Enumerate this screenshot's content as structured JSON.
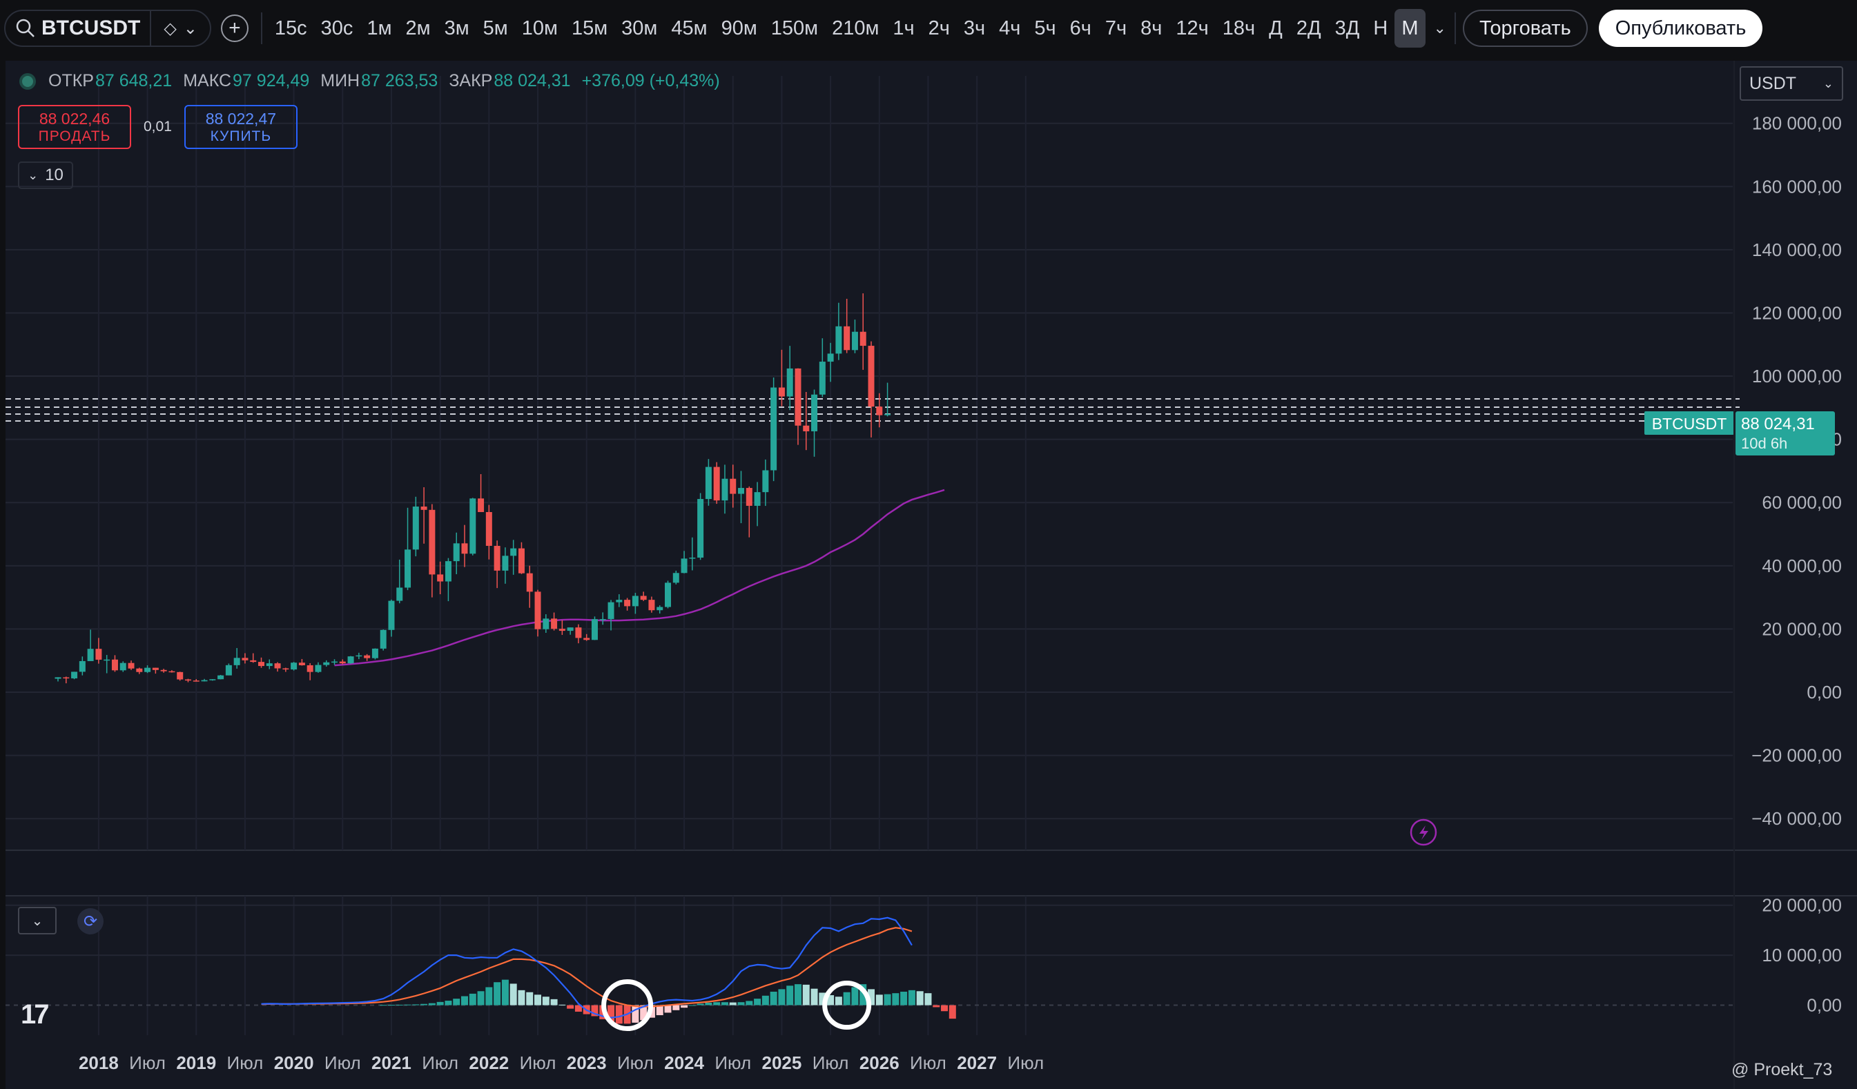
{
  "toolbar": {
    "symbol": "BTCUSDT",
    "timeframes": [
      "15с",
      "30с",
      "1м",
      "2м",
      "3м",
      "5м",
      "10м",
      "15м",
      "30м",
      "45м",
      "90м",
      "150м",
      "210м",
      "1ч",
      "2ч",
      "3ч",
      "4ч",
      "5ч",
      "6ч",
      "7ч",
      "8ч",
      "12ч",
      "18ч",
      "Д",
      "2Д",
      "3Д",
      "Н",
      "М"
    ],
    "active_timeframe": "М",
    "trade_label": "Торговать",
    "publish_label": "Опубликовать"
  },
  "legend": {
    "open_label": "ОТКР",
    "open": "87 648,21",
    "high_label": "МАКС",
    "high": "97 924,49",
    "low_label": "МИН",
    "low": "87 263,53",
    "close_label": "ЗАКР",
    "close": "88 024,31",
    "change": "+376,09 (+0,43%)"
  },
  "order": {
    "sell_price": "88 022,46",
    "sell_label": "ПРОДАТЬ",
    "spread": "0,01",
    "buy_price": "88 022,47",
    "buy_label": "КУПИТЬ"
  },
  "indicators_count": "10",
  "currency": "USDT",
  "price_badge": {
    "symbol": "BTCUSDT",
    "price": "88 024,31",
    "countdown": "10d 6h"
  },
  "watermark": "@ Proekt_73",
  "colors": {
    "up": "#26a69a",
    "down": "#ef5350",
    "ma": "#9c27b0",
    "macd": "#2962ff",
    "signal": "#ff6d3a",
    "hist_up": "#26a69a",
    "hist_up_fade": "#b2dfdb",
    "hist_down": "#ef5350",
    "hist_down_fade": "#ffcdd2"
  },
  "chart_data": [
    {
      "type": "candlestick",
      "title": "BTCUSDT",
      "ylim": [
        -50000,
        195000
      ],
      "y_ticks": [
        -40000,
        -20000,
        0,
        20000,
        40000,
        60000,
        80000,
        100000,
        120000,
        140000,
        160000,
        180000
      ],
      "y_tick_labels": [
        "−40 000,00",
        "−20 000,00",
        "0,00",
        "20 000,00",
        "40 000,00",
        "60 000,00",
        "80 000,00",
        "100 000,00",
        "120 000,00",
        "140 000,00",
        "160 000,00",
        "180 000,00"
      ],
      "x_labels": [
        "2018",
        "Июл",
        "2019",
        "Июл",
        "2020",
        "Июл",
        "2021",
        "Июл",
        "2022",
        "Июл",
        "2023",
        "Июл",
        "2024",
        "Июл",
        "2025",
        "Июл",
        "2026",
        "Июл",
        "2027",
        "Июл"
      ],
      "start": "2017-08",
      "candles": [
        [
          4261,
          4745,
          3400,
          4724
        ],
        [
          4690,
          4939,
          2817,
          4378
        ],
        [
          4378,
          6470,
          4110,
          6463
        ],
        [
          6463,
          11300,
          5325,
          9838
        ],
        [
          9838,
          19798,
          10834,
          13716
        ],
        [
          13716,
          17176,
          9035,
          10285
        ],
        [
          10285,
          11786,
          6000,
          10326
        ],
        [
          10326,
          11710,
          6450,
          6923
        ],
        [
          6923,
          9759,
          6425,
          9246
        ],
        [
          9246,
          10020,
          7030,
          7494
        ],
        [
          7494,
          7754,
          5755,
          6391
        ],
        [
          6391,
          8507,
          6070,
          7730
        ],
        [
          7730,
          7750,
          5880,
          7033
        ],
        [
          7033,
          7410,
          6170,
          6625
        ],
        [
          6625,
          6965,
          6205,
          6371
        ],
        [
          6371,
          6480,
          3652,
          4041
        ],
        [
          4041,
          4236,
          3156,
          3689
        ],
        [
          3689,
          4140,
          3350,
          3437
        ],
        [
          3437,
          4198,
          3400,
          3814
        ],
        [
          3814,
          4120,
          3650,
          4103
        ],
        [
          4103,
          5467,
          4050,
          5320
        ],
        [
          5320,
          9074,
          5330,
          8555
        ],
        [
          8555,
          13970,
          7450,
          10855
        ],
        [
          10855,
          12345,
          9080,
          10085
        ],
        [
          10085,
          12325,
          9320,
          9590
        ],
        [
          9590,
          10960,
          7710,
          8289
        ],
        [
          8289,
          10370,
          7300,
          9140
        ],
        [
          9140,
          9500,
          6525,
          7540
        ],
        [
          7540,
          7750,
          6430,
          7195
        ],
        [
          7195,
          9578,
          6850,
          9350
        ],
        [
          9350,
          10500,
          8410,
          8524
        ],
        [
          8524,
          9188,
          3782,
          6410
        ],
        [
          6410,
          9460,
          6150,
          8620
        ],
        [
          8620,
          10080,
          8100,
          9450
        ],
        [
          9450,
          10428,
          8630,
          9700
        ],
        [
          9700,
          10380,
          8825,
          9137
        ],
        [
          9137,
          11444,
          8980,
          11335
        ],
        [
          11335,
          12486,
          10460,
          11649
        ],
        [
          11649,
          12050,
          9875,
          10776
        ],
        [
          10776,
          13868,
          10374,
          13791
        ],
        [
          13791,
          19863,
          13195,
          19700
        ],
        [
          19700,
          29300,
          17570,
          28923
        ],
        [
          28923,
          41950,
          28130,
          33092
        ],
        [
          33092,
          58352,
          32296,
          45136
        ],
        [
          45136,
          61844,
          43000,
          58740
        ],
        [
          58740,
          64854,
          47000,
          57694
        ],
        [
          57694,
          59500,
          30000,
          37253
        ],
        [
          37253,
          41330,
          31000,
          35045
        ],
        [
          35045,
          42448,
          28805,
          41462
        ],
        [
          41462,
          50500,
          37332,
          47100
        ],
        [
          47100,
          52920,
          39600,
          43824
        ],
        [
          43824,
          61500,
          43283,
          61299
        ],
        [
          61299,
          69000,
          58000,
          57000
        ],
        [
          57000,
          59250,
          42000,
          46306
        ],
        [
          46306,
          48000,
          32950,
          38466
        ],
        [
          38466,
          45821,
          34322,
          43160
        ],
        [
          43160,
          48190,
          37154,
          45510
        ],
        [
          45510,
          47444,
          37386,
          37630
        ],
        [
          37630,
          40023,
          26700,
          31801
        ],
        [
          31801,
          32399,
          17622,
          19942
        ],
        [
          19942,
          24668,
          18782,
          23293
        ],
        [
          23293,
          25211,
          19520,
          20050
        ],
        [
          20050,
          22799,
          18125,
          19422
        ],
        [
          19422,
          20475,
          18190,
          20490
        ],
        [
          20490,
          21480,
          15476,
          17164
        ],
        [
          17164,
          18387,
          16256,
          16542
        ],
        [
          16542,
          23955,
          16499,
          23125
        ],
        [
          23125,
          25250,
          21351,
          23141
        ],
        [
          23141,
          29184,
          19549,
          28465
        ],
        [
          28465,
          31000,
          26942,
          29233
        ],
        [
          29233,
          29820,
          25811,
          27210
        ],
        [
          27210,
          31431,
          24800,
          30472
        ],
        [
          30472,
          31804,
          28861,
          29232
        ],
        [
          29232,
          30244,
          25166,
          25940
        ],
        [
          25940,
          27483,
          24901,
          26962
        ],
        [
          26962,
          35280,
          26538,
          34639
        ],
        [
          34639,
          38450,
          34100,
          37723
        ],
        [
          37723,
          44700,
          37615,
          42284
        ],
        [
          42284,
          48969,
          38555,
          42580
        ],
        [
          42580,
          63000,
          41880,
          61130
        ],
        [
          61130,
          73777,
          59005,
          71280
        ],
        [
          71280,
          72797,
          59600,
          60672
        ],
        [
          60672,
          71979,
          56500,
          67540
        ],
        [
          67540,
          72000,
          58402,
          62772
        ],
        [
          62772,
          70016,
          53485,
          64628
        ],
        [
          64628,
          65100,
          49000,
          58973
        ],
        [
          58973,
          66500,
          52550,
          63300
        ],
        [
          63300,
          73620,
          58946,
          70215
        ],
        [
          70215,
          99588,
          66800,
          96405
        ],
        [
          96405,
          108353,
          90500,
          93576
        ],
        [
          93576,
          109588,
          89256,
          102429
        ],
        [
          102429,
          102500,
          78258,
          84350
        ],
        [
          84350,
          95000,
          76606,
          82550
        ],
        [
          82550,
          95758,
          74508,
          94172
        ],
        [
          94172,
          111980,
          93377,
          104591
        ],
        [
          104591,
          110530,
          98200,
          107135
        ],
        [
          107135,
          123218,
          105100,
          115764
        ],
        [
          115764,
          124474,
          107300,
          108246
        ],
        [
          108246,
          117900,
          107255,
          114048
        ],
        [
          114048,
          126199,
          102000,
          109608
        ],
        [
          109608,
          111000,
          80600,
          90360
        ],
        [
          90360,
          94600,
          83800,
          87648
        ],
        [
          87648,
          97924,
          87263,
          88024
        ]
      ],
      "ma_start_index": 34,
      "ma": [
        8500,
        8700,
        8900,
        9100,
        9400,
        9700,
        10000,
        10400,
        10900,
        11400,
        12000,
        12600,
        13200,
        14000,
        14800,
        15700,
        16600,
        17400,
        18200,
        19000,
        19700,
        20300,
        20900,
        21400,
        21800,
        22200,
        22500,
        22700,
        22900,
        23000,
        23000,
        22900,
        22800,
        22700,
        22700,
        22700,
        22800,
        22900,
        23000,
        23200,
        23400,
        23700,
        24100,
        24700,
        25400,
        26200,
        27300,
        28500,
        29800,
        31000,
        32300,
        33500,
        34600,
        35600,
        36600,
        37500,
        38300,
        39100,
        40000,
        41200,
        42700,
        44300,
        45500,
        46800,
        48200,
        50000,
        52200,
        54200,
        56300,
        58000,
        59700,
        60900,
        61700,
        62500,
        63200,
        64000
      ]
    },
    {
      "type": "macd",
      "ylim": [
        -6000,
        23000
      ],
      "y_ticks": [
        0,
        10000,
        20000
      ],
      "y_tick_labels": [
        "0,00",
        "10 000,00",
        "20 000,00"
      ],
      "start": "2017-08",
      "macd_start_index": 25,
      "macd": [
        250,
        300,
        280,
        220,
        260,
        300,
        350,
        380,
        400,
        420,
        480,
        520,
        580,
        700,
        900,
        1300,
        2100,
        3200,
        4500,
        5600,
        6700,
        8000,
        9100,
        10000,
        10000,
        9500,
        9400,
        9600,
        9500,
        9500,
        10500,
        11200,
        10800,
        9900,
        8700,
        7500,
        6000,
        4200,
        2400,
        300,
        -1000,
        -1700,
        -2200,
        -2500,
        -2300,
        -1800,
        -900,
        -300,
        300,
        700,
        1000,
        1100,
        1000,
        900,
        1100,
        1500,
        2200,
        3200,
        4800,
        6800,
        7800,
        8100,
        8000,
        7500,
        7300,
        7500,
        9500,
        12000,
        14000,
        15500,
        15400,
        14800,
        15600,
        16200,
        16400,
        17300,
        17200,
        17500,
        17000,
        14800,
        12000
      ],
      "signal_start_index": 25,
      "signal": [
        200,
        230,
        250,
        260,
        260,
        270,
        280,
        290,
        300,
        320,
        340,
        360,
        400,
        450,
        540,
        670,
        860,
        1130,
        1480,
        1890,
        2350,
        2860,
        3400,
        4150,
        4900,
        5500,
        6100,
        6700,
        7400,
        8000,
        8600,
        9200,
        9200,
        9100,
        8800,
        8400,
        7900,
        7100,
        6200,
        5000,
        3800,
        2700,
        1700,
        900,
        400,
        0,
        -200,
        -300,
        -250,
        -150,
        0,
        150,
        300,
        420,
        550,
        700,
        900,
        1200,
        1600,
        2100,
        2700,
        3300,
        3900,
        4400,
        4900,
        5300,
        6000,
        7200,
        8400,
        9600,
        10600,
        11400,
        12100,
        12700,
        13300,
        13900,
        14400,
        15100,
        15500,
        15300,
        14800
      ],
      "hist_start_index": 40,
      "histogram": [
        50,
        70,
        90,
        120,
        160,
        250,
        400,
        650,
        900,
        1300,
        1800,
        2300,
        2800,
        3600,
        4600,
        5100,
        4300,
        3000,
        2600,
        2100,
        1700,
        1200,
        100,
        -700,
        -1300,
        -1800,
        -2200,
        -2800,
        -3400,
        -3700,
        -3700,
        -3500,
        -3000,
        -2500,
        -2000,
        -1500,
        -1000,
        -500,
        0,
        300,
        500,
        600,
        600,
        550,
        600,
        850,
        1300,
        1900,
        2700,
        3200,
        3900,
        4200,
        4100,
        3300,
        2500,
        2000,
        1700,
        2600,
        3600,
        4200,
        3200,
        2100,
        2200,
        2400,
        2700,
        3000,
        2800,
        2400,
        -400,
        -1200,
        -2700
      ]
    }
  ]
}
